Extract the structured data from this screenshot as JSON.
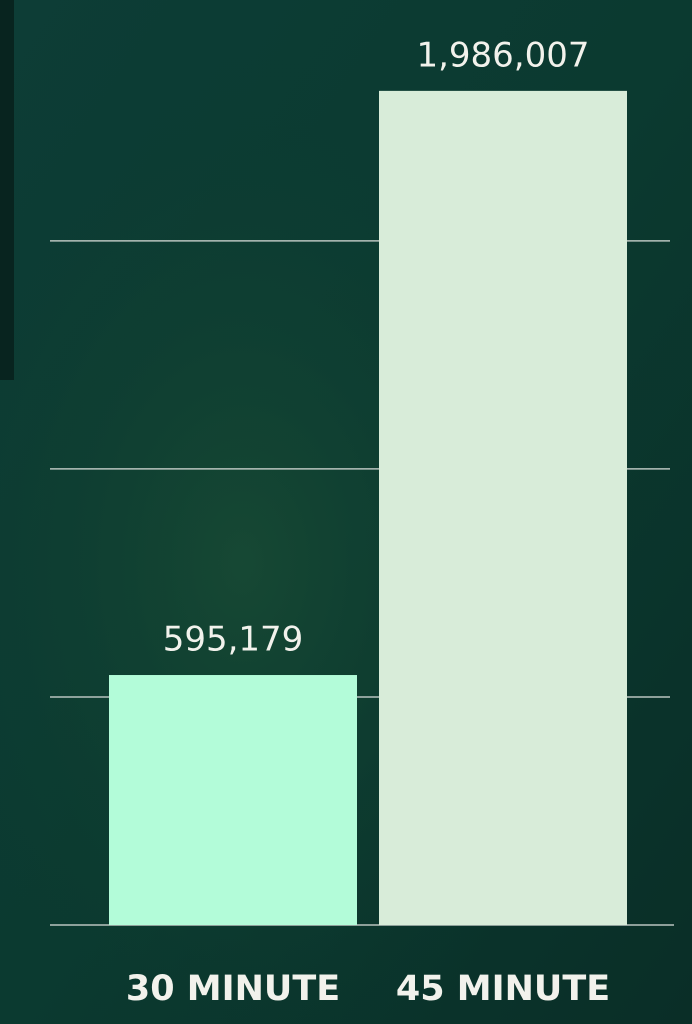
{
  "chart_data": {
    "type": "bar",
    "categories": [
      "30 MINUTE",
      "45 MINUTE"
    ],
    "values": [
      595179,
      1986007
    ],
    "value_labels": [
      "595,179",
      "1,986,007"
    ],
    "colors": [
      "#b3fcd9",
      "#d8ecd9"
    ],
    "ylim": [
      0,
      2200000
    ],
    "yticks": [
      0,
      543000,
      1086000,
      1629000
    ],
    "grid": true
  }
}
